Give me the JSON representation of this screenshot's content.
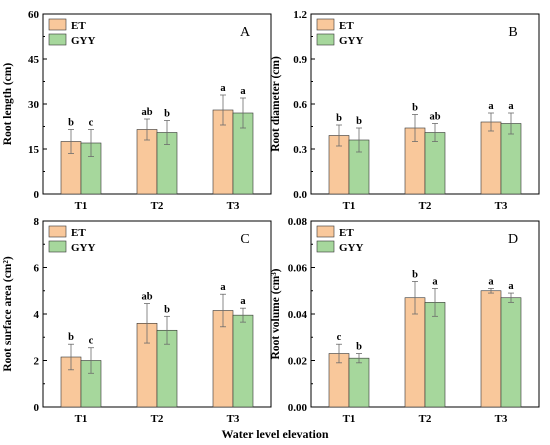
{
  "figure": {
    "xlabel": "Water level elevation"
  },
  "chart_data": [
    {
      "type": "bar",
      "panel_label": "A",
      "ylabel": "Root length (cm)",
      "categories": [
        "T1",
        "T2",
        "T3"
      ],
      "ylim": [
        0,
        60
      ],
      "yticks": [
        "0",
        "15",
        "30",
        "45",
        "60"
      ],
      "series": [
        {
          "name": "ET",
          "color": "#F9C89B",
          "values": [
            17.5,
            21.5,
            28.0
          ],
          "errors": [
            4.0,
            3.5,
            5.0
          ],
          "letters": [
            "b",
            "ab",
            "a"
          ]
        },
        {
          "name": "GYY",
          "color": "#A6D79C",
          "values": [
            17.0,
            20.5,
            27.0
          ],
          "errors": [
            4.5,
            4.0,
            5.0
          ],
          "letters": [
            "c",
            "b",
            "a"
          ]
        }
      ],
      "legend": "top-left"
    },
    {
      "type": "bar",
      "panel_label": "B",
      "ylabel": "Root diameter (cm)",
      "categories": [
        "T1",
        "T2",
        "T3"
      ],
      "ylim": [
        0,
        1.2
      ],
      "yticks": [
        "0.0",
        "0.3",
        "0.6",
        "0.9",
        "1.2"
      ],
      "series": [
        {
          "name": "ET",
          "color": "#F9C89B",
          "values": [
            0.39,
            0.44,
            0.48
          ],
          "errors": [
            0.07,
            0.09,
            0.06
          ],
          "letters": [
            "b",
            "b",
            "a"
          ]
        },
        {
          "name": "GYY",
          "color": "#A6D79C",
          "values": [
            0.36,
            0.41,
            0.47
          ],
          "errors": [
            0.08,
            0.06,
            0.07
          ],
          "letters": [
            "b",
            "ab",
            "a"
          ]
        }
      ],
      "legend": "top-left"
    },
    {
      "type": "bar",
      "panel_label": "C",
      "ylabel": "Root surface area (cm²)",
      "categories": [
        "T1",
        "T2",
        "T3"
      ],
      "ylim": [
        0,
        8
      ],
      "yticks": [
        "0",
        "2",
        "4",
        "6",
        "8"
      ],
      "series": [
        {
          "name": "ET",
          "color": "#F9C89B",
          "values": [
            2.15,
            3.6,
            4.15
          ],
          "errors": [
            0.55,
            0.85,
            0.7
          ],
          "letters": [
            "b",
            "ab",
            "a"
          ]
        },
        {
          "name": "GYY",
          "color": "#A6D79C",
          "values": [
            2.0,
            3.3,
            3.95
          ],
          "errors": [
            0.55,
            0.6,
            0.3
          ],
          "letters": [
            "c",
            "b",
            "a"
          ]
        }
      ],
      "legend": "top-left"
    },
    {
      "type": "bar",
      "panel_label": "D",
      "ylabel": "Root volume (cm³)",
      "categories": [
        "T1",
        "T2",
        "T3"
      ],
      "ylim": [
        0,
        0.08
      ],
      "yticks": [
        "0.00",
        "0.02",
        "0.04",
        "0.06",
        "0.08"
      ],
      "series": [
        {
          "name": "ET",
          "color": "#F9C89B",
          "values": [
            0.023,
            0.047,
            0.05
          ],
          "errors": [
            0.004,
            0.007,
            0.001
          ],
          "letters": [
            "c",
            "b",
            "a"
          ]
        },
        {
          "name": "GYY",
          "color": "#A6D79C",
          "values": [
            0.021,
            0.045,
            0.047
          ],
          "errors": [
            0.002,
            0.006,
            0.002
          ],
          "letters": [
            "b",
            "a",
            "a"
          ]
        }
      ],
      "legend": "top-left"
    }
  ]
}
